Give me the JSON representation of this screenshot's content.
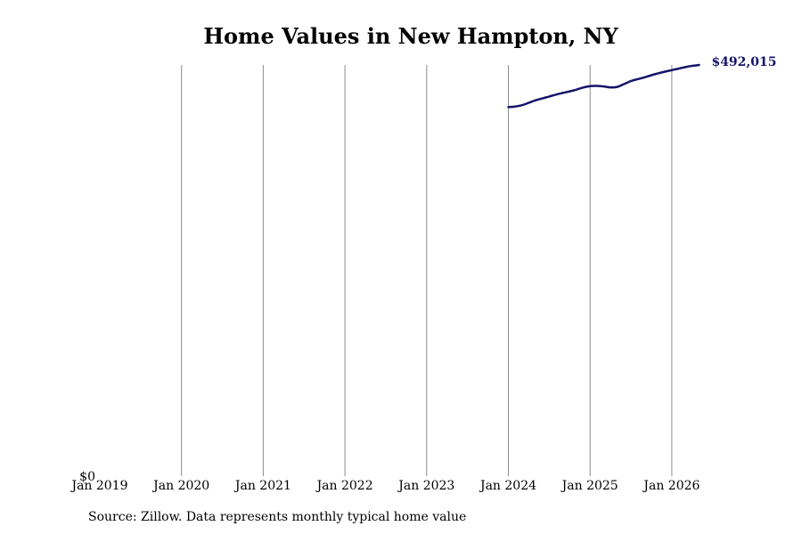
{
  "chart_data": {
    "type": "line",
    "title": "Home Values in New Hampton, NY",
    "xlabel": "",
    "ylabel": "",
    "x_ticks": [
      "Jan 2019",
      "Jan 2020",
      "Jan 2021",
      "Jan 2022",
      "Jan 2023",
      "Jan 2024",
      "Jan 2025",
      "Jan 2026"
    ],
    "y_ticks": [
      "$0"
    ],
    "ylim": [
      0,
      492015
    ],
    "grid": "vertical",
    "series": [
      {
        "color": "#14146b",
        "points": [
          {
            "x": "2024-01",
            "y": 441600
          },
          {
            "x": "2024-02",
            "y": 442300
          },
          {
            "x": "2024-03",
            "y": 443900
          },
          {
            "x": "2024-04",
            "y": 446800
          },
          {
            "x": "2024-05",
            "y": 449700
          },
          {
            "x": "2024-06",
            "y": 452000
          },
          {
            "x": "2024-07",
            "y": 454300
          },
          {
            "x": "2024-08",
            "y": 456600
          },
          {
            "x": "2024-09",
            "y": 458600
          },
          {
            "x": "2024-10",
            "y": 460400
          },
          {
            "x": "2024-11",
            "y": 462500
          },
          {
            "x": "2024-12",
            "y": 465100
          },
          {
            "x": "2025-01",
            "y": 466800
          },
          {
            "x": "2025-02",
            "y": 467000
          },
          {
            "x": "2025-03",
            "y": 466300
          },
          {
            "x": "2025-04",
            "y": 465200
          },
          {
            "x": "2025-05",
            "y": 465800
          },
          {
            "x": "2025-06",
            "y": 469200
          },
          {
            "x": "2025-07",
            "y": 472800
          },
          {
            "x": "2025-08",
            "y": 475100
          },
          {
            "x": "2025-09",
            "y": 477200
          },
          {
            "x": "2025-10",
            "y": 479800
          },
          {
            "x": "2025-11",
            "y": 482000
          },
          {
            "x": "2025-12",
            "y": 484000
          },
          {
            "x": "2026-01",
            "y": 485800
          },
          {
            "x": "2026-02",
            "y": 487700
          },
          {
            "x": "2026-03",
            "y": 489500
          },
          {
            "x": "2026-04",
            "y": 491000
          },
          {
            "x": "2026-05",
            "y": 492015
          }
        ]
      }
    ],
    "end_label": "$492,015"
  },
  "source": "Source: Zillow. Data represents monthly typical home value"
}
